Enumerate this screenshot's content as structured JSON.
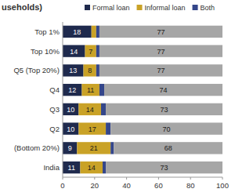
{
  "chart_data": {
    "type": "bar",
    "title": "useholds)",
    "orientation": "horizontal",
    "stacked": true,
    "data_labels": true,
    "grid": false,
    "legend": "top",
    "categories": [
      "Top 1%",
      "Top 10%",
      "Q5 (Top 20%)",
      "Q4",
      "Q3",
      "Q2",
      "(Bottom 20%)",
      "India"
    ],
    "series": [
      {
        "name": "Formal loan",
        "color": "#1f2a4d",
        "values": [
          18,
          14,
          13,
          12,
          10,
          10,
          9,
          11
        ]
      },
      {
        "name": "Informal loan",
        "color": "#c9a227",
        "values": [
          3,
          7,
          8,
          11,
          14,
          17,
          21,
          14
        ]
      },
      {
        "name": "Both",
        "color": "#34468a",
        "values": [
          2,
          2,
          2,
          3,
          3,
          3,
          2,
          2
        ]
      },
      {
        "name": null,
        "color": "#a6a6a6",
        "values": [
          77,
          77,
          77,
          74,
          73,
          70,
          68,
          73
        ]
      }
    ],
    "xlim": [
      0,
      100
    ],
    "xticks": [
      0,
      20,
      40,
      60,
      80,
      100
    ]
  }
}
